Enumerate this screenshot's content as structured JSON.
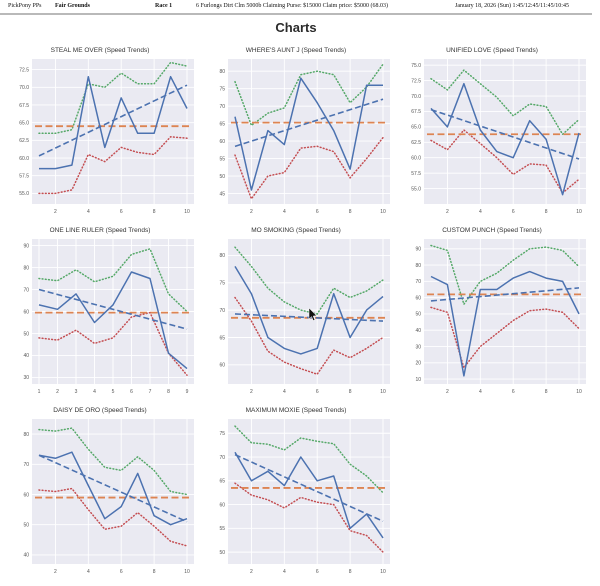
{
  "header": {
    "brand": "PickPony PPs",
    "track": "Fair Grounds",
    "race": "Race 1",
    "conditions": "6 Furlongs Dirt Clm 5000b Claiming Purse: $15000 Claim price: $5000 (68.03)",
    "datetime": "January 18, 2026 (Sun) 1:45/12:45/11:45/10:45"
  },
  "page_title": "Charts",
  "style": {
    "plot_bg": "#eaeaf2",
    "grid_color": "#ffffff",
    "speed_color": "#4c72b0",
    "trend_color": "#4c72b0",
    "average_color": "#dd8452",
    "upper_color": "#55a868",
    "lower_color": "#c44e52",
    "tick_color": "#555555"
  },
  "chart_data": [
    {
      "type": "line",
      "title": "STEAL ME OVER (Speed Trends)",
      "x": [
        1,
        2,
        3,
        4,
        5,
        6,
        7,
        8,
        9,
        10
      ],
      "x_ticks": [
        2,
        4,
        6,
        8,
        10
      ],
      "ylim": [
        53.5,
        74.0
      ],
      "y_ticks": [
        55.0,
        57.5,
        60.0,
        62.5,
        65.0,
        67.5,
        70.0,
        72.5
      ],
      "y_decimals": 1,
      "speed": [
        58.5,
        58.5,
        59,
        71.5,
        61.5,
        68.5,
        63.5,
        63.5,
        71.5,
        67
      ],
      "upper": [
        63.5,
        63.5,
        64,
        70.5,
        70,
        72,
        70.5,
        70.5,
        73.5,
        73
      ],
      "lower": [
        55,
        55,
        55.5,
        60.5,
        59.5,
        61.5,
        60.8,
        60.5,
        63,
        62.8
      ],
      "average": 64.5,
      "trend": {
        "start": 60.3,
        "end": 70.3
      }
    },
    {
      "type": "line",
      "title": "WHERE'S AUNT J (Speed Trends)",
      "x": [
        1,
        2,
        3,
        4,
        5,
        6,
        7,
        8,
        9,
        10
      ],
      "x_ticks": [
        2,
        4,
        6,
        8,
        10
      ],
      "ylim": [
        42.0,
        83.5
      ],
      "y_ticks": [
        45,
        50,
        55,
        60,
        65,
        70,
        75,
        80
      ],
      "y_decimals": 0,
      "speed": [
        67,
        46,
        63,
        59,
        78,
        71,
        63,
        52,
        76,
        76
      ],
      "upper": [
        77,
        64.5,
        68,
        69.5,
        79,
        80,
        79,
        71,
        75.5,
        82
      ],
      "lower": [
        56,
        43.5,
        50,
        51,
        58,
        58.5,
        57,
        49.5,
        55,
        61
      ],
      "average": 65.3,
      "trend": {
        "start": 58.5,
        "end": 72.0
      }
    },
    {
      "type": "line",
      "title": "UNIFIED LOVE (Speed Trends)",
      "x": [
        1,
        2,
        3,
        4,
        5,
        6,
        7,
        8,
        9,
        10
      ],
      "x_ticks": [
        2,
        4,
        6,
        8,
        10
      ],
      "ylim": [
        52.5,
        76.0
      ],
      "y_ticks": [
        55.0,
        57.5,
        60.0,
        62.5,
        65.0,
        67.5,
        70.0,
        72.5,
        75.0
      ],
      "y_decimals": 1,
      "speed": [
        68,
        65,
        72,
        64.5,
        61,
        60,
        66,
        63,
        54,
        64
      ],
      "upper": [
        72.8,
        71,
        74.2,
        72,
        69.8,
        66.8,
        68.7,
        68.3,
        63.8,
        66.2
      ],
      "lower": [
        62.8,
        61.3,
        64.5,
        62.3,
        60,
        57.3,
        59,
        58.8,
        54.3,
        56.5
      ],
      "average": 63.8,
      "trend": {
        "start": 67.8,
        "end": 59.8
      }
    },
    {
      "type": "line",
      "title": "ONE LINE RULER (Speed Trends)",
      "x": [
        1,
        2,
        3,
        4,
        5,
        6,
        7,
        8,
        9
      ],
      "x_ticks": [
        1,
        2,
        3,
        4,
        5,
        6,
        7,
        8,
        9
      ],
      "ylim": [
        27.0,
        93.0
      ],
      "y_ticks": [
        30,
        40,
        50,
        60,
        70,
        80,
        90
      ],
      "y_decimals": 0,
      "speed": [
        63,
        61,
        68,
        55,
        63,
        78,
        75,
        41,
        34
      ],
      "upper": [
        75,
        74,
        79,
        73.5,
        76,
        86,
        88.5,
        68,
        60
      ],
      "lower": [
        48,
        47,
        51.5,
        45.5,
        48,
        57.5,
        59.5,
        41,
        31
      ],
      "average": 59.5,
      "trend": {
        "start": 70.0,
        "end": 52.0
      }
    },
    {
      "type": "line",
      "title": "MO SMOKING (Speed Trends)",
      "x": [
        1,
        2,
        3,
        4,
        5,
        6,
        7,
        8,
        9,
        10
      ],
      "x_ticks": [
        2,
        4,
        6,
        8,
        10
      ],
      "ylim": [
        56.5,
        83.0
      ],
      "y_ticks": [
        60,
        65,
        70,
        75,
        80
      ],
      "y_decimals": 0,
      "speed": [
        78,
        73,
        65,
        63,
        62,
        63,
        73,
        65,
        70,
        72.5
      ],
      "upper": [
        81.5,
        78,
        74,
        71.5,
        70,
        69.3,
        74,
        72.3,
        73.5,
        75.5
      ],
      "lower": [
        72.3,
        68,
        62.5,
        60.5,
        59.3,
        58.3,
        62.7,
        61.3,
        63,
        65
      ],
      "average": 68.6,
      "trend": {
        "start": 69.3,
        "end": 68.0
      }
    },
    {
      "type": "line",
      "title": "CUSTOM PUNCH (Speed Trends)",
      "x": [
        1,
        2,
        3,
        4,
        5,
        6,
        7,
        8,
        9,
        10
      ],
      "x_ticks": [
        2,
        4,
        6,
        8,
        10
      ],
      "ylim": [
        7.0,
        96.0
      ],
      "y_ticks": [
        10,
        20,
        30,
        40,
        50,
        60,
        70,
        80,
        90
      ],
      "y_decimals": 0,
      "speed": [
        73,
        68,
        12,
        65,
        65,
        72,
        76,
        72,
        70,
        50
      ],
      "upper": [
        92,
        89,
        56,
        70,
        75,
        83,
        90,
        91,
        89,
        79
      ],
      "lower": [
        54,
        51,
        17,
        30,
        38,
        46,
        52,
        53,
        51,
        41
      ],
      "average": 62.0,
      "trend": {
        "start": 58.0,
        "end": 66.0
      }
    },
    {
      "type": "line",
      "title": "DAISY DE ORO (Speed Trends)",
      "x": [
        1,
        2,
        3,
        4,
        5,
        6,
        7,
        8,
        9,
        10
      ],
      "x_ticks": [
        2,
        4,
        6,
        8,
        10
      ],
      "ylim": [
        37.0,
        85.0
      ],
      "y_ticks": [
        40,
        50,
        60,
        70,
        80
      ],
      "y_decimals": 0,
      "speed": [
        73,
        72,
        74,
        63,
        52,
        56,
        67,
        53,
        50,
        52
      ],
      "upper": [
        81.5,
        81,
        82,
        75,
        69,
        68,
        72.5,
        68,
        61,
        60
      ],
      "lower": [
        61.5,
        61,
        62,
        55,
        48.5,
        49.5,
        54,
        49.5,
        44.5,
        43
      ],
      "average": 59.0,
      "trend": {
        "start": 73.0,
        "end": 51.0
      }
    },
    {
      "type": "line",
      "title": "MAXIMUM MOXIE (Speed Trends)",
      "x": [
        1,
        2,
        3,
        4,
        5,
        6,
        7,
        8,
        9,
        10
      ],
      "x_ticks": [
        2,
        4,
        6,
        8,
        10
      ],
      "ylim": [
        47.5,
        78.0
      ],
      "y_ticks": [
        50,
        55,
        60,
        65,
        70,
        75
      ],
      "y_decimals": 0,
      "speed": [
        71,
        65,
        67,
        64,
        70,
        65,
        66,
        55,
        58,
        53
      ],
      "upper": [
        76.5,
        73,
        72.7,
        71.5,
        74,
        73.3,
        72.8,
        68.5,
        66,
        62.5
      ],
      "lower": [
        64.5,
        62,
        61,
        59.3,
        61.5,
        60.5,
        60,
        54.5,
        53.5,
        50
      ],
      "average": 63.5,
      "trend": {
        "start": 70.5,
        "end": 56.5
      }
    }
  ]
}
